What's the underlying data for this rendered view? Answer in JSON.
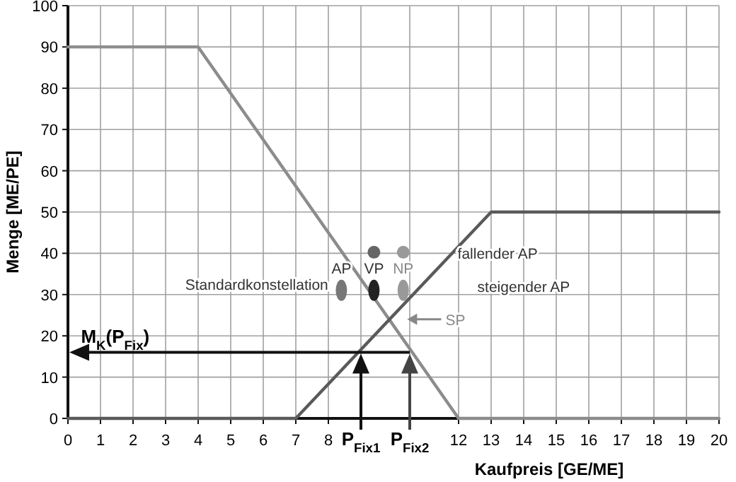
{
  "chart_data": {
    "type": "line",
    "xlabel": "Kaufpreis [GE/ME]",
    "ylabel": "Menge [ME/PE]",
    "xlim": [
      0,
      20
    ],
    "ylim": [
      0,
      100
    ],
    "xticks": [
      0,
      1,
      2,
      3,
      4,
      5,
      6,
      7,
      8,
      {
        "value": 9,
        "label": "P$_{Fix1}$"
      },
      {
        "value": 10.5,
        "label": "P$_{Fix2}$"
      },
      12,
      13,
      14,
      15,
      16,
      17,
      18,
      19,
      20
    ],
    "yticks": [
      0,
      10,
      20,
      30,
      40,
      50,
      60,
      70,
      80,
      90,
      100
    ],
    "grid": true,
    "line_style": "solid",
    "series": [
      {
        "color": "#8c8c8c",
        "x": [
          0,
          4,
          12,
          20
        ],
        "values": [
          90,
          90,
          0,
          0
        ]
      },
      {
        "color": "#5a5a5a",
        "x": [
          0,
          7,
          13,
          20
        ],
        "values": [
          0,
          0,
          50,
          50
        ]
      }
    ],
    "annotations": [
      {
        "text": "M$_{K}$(P$_{Fix}$)",
        "x": 0.4,
        "y": 16
      },
      "Standardkonstellation",
      "AP",
      "VP",
      "NP",
      "fallender AP",
      "steigender AP",
      "SP"
    ]
  }
}
